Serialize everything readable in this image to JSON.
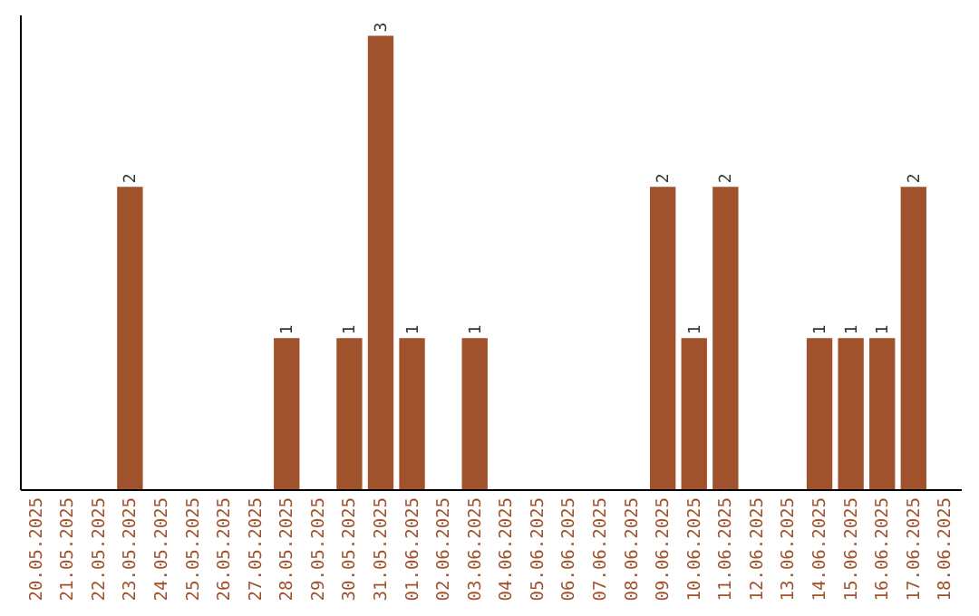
{
  "chart_data": {
    "type": "bar",
    "categories": [
      "20.05.2025",
      "21.05.2025",
      "22.05.2025",
      "23.05.2025",
      "24.05.2025",
      "25.05.2025",
      "26.05.2025",
      "27.05.2025",
      "28.05.2025",
      "29.05.2025",
      "30.05.2025",
      "31.05.2025",
      "01.06.2025",
      "02.06.2025",
      "03.06.2025",
      "04.06.2025",
      "05.06.2025",
      "06.06.2025",
      "07.06.2025",
      "08.06.2025",
      "09.06.2025",
      "10.06.2025",
      "11.06.2025",
      "12.06.2025",
      "13.06.2025",
      "14.06.2025",
      "15.06.2025",
      "16.06.2025",
      "17.06.2025",
      "18.06.2025"
    ],
    "values": [
      0,
      0,
      0,
      2,
      0,
      0,
      0,
      0,
      1,
      0,
      1,
      3,
      1,
      0,
      1,
      0,
      0,
      0,
      0,
      0,
      2,
      1,
      2,
      0,
      0,
      1,
      1,
      1,
      2,
      0
    ],
    "value_labels": [
      null,
      null,
      null,
      "2",
      null,
      null,
      null,
      null,
      "1",
      null,
      "1",
      "3",
      "1",
      null,
      "1",
      null,
      null,
      null,
      null,
      null,
      "2",
      "1",
      "2",
      null,
      null,
      "1",
      "1",
      "1",
      "2",
      null
    ],
    "color": "#a0522d",
    "tick_labels": "x",
    "grid": false
  }
}
